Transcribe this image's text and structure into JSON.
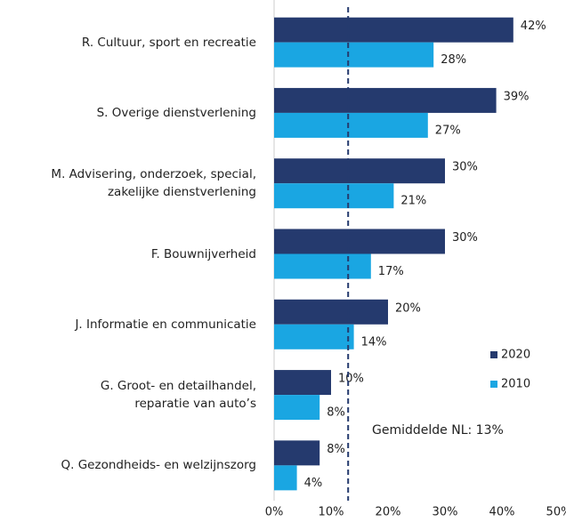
{
  "chart_data": {
    "type": "hbar",
    "categories": [
      "R. Cultuur, sport en recreatie",
      "S. Overige dienstverlening",
      "M.  Advisering, onderzoek, special,\nzakelijke dienstverlening",
      "F. Bouwnijverheid",
      "J. Informatie en communicatie",
      "G. Groot- en detailhandel,\nreparatie van auto’s",
      "Q. Gezondheids- en welzijnszorg"
    ],
    "series": [
      {
        "name": "2020",
        "color": "#253a6e",
        "values": [
          42,
          39,
          30,
          30,
          20,
          10,
          8
        ],
        "value_labels": [
          "42%",
          "39%",
          "30%",
          "30%",
          "20%",
          "10%",
          "8%"
        ]
      },
      {
        "name": "2010",
        "color": "#1aa6e2",
        "values": [
          28,
          27,
          21,
          17,
          14,
          8,
          4
        ],
        "value_labels": [
          "28%",
          "27%",
          "21%",
          "17%",
          "14%",
          "8%",
          "4%"
        ]
      }
    ],
    "xlim": [
      0,
      50
    ],
    "xticks": [
      {
        "value": 0,
        "label": "0%"
      },
      {
        "value": 10,
        "label": "10%"
      },
      {
        "value": 20,
        "label": "20%"
      },
      {
        "value": 30,
        "label": "30%"
      },
      {
        "value": 40,
        "label": "40%"
      },
      {
        "value": 50,
        "label": "50%"
      }
    ],
    "average": {
      "value": 13,
      "label": "Gemiddelde NL: 13%"
    },
    "legend": "lower-right"
  }
}
